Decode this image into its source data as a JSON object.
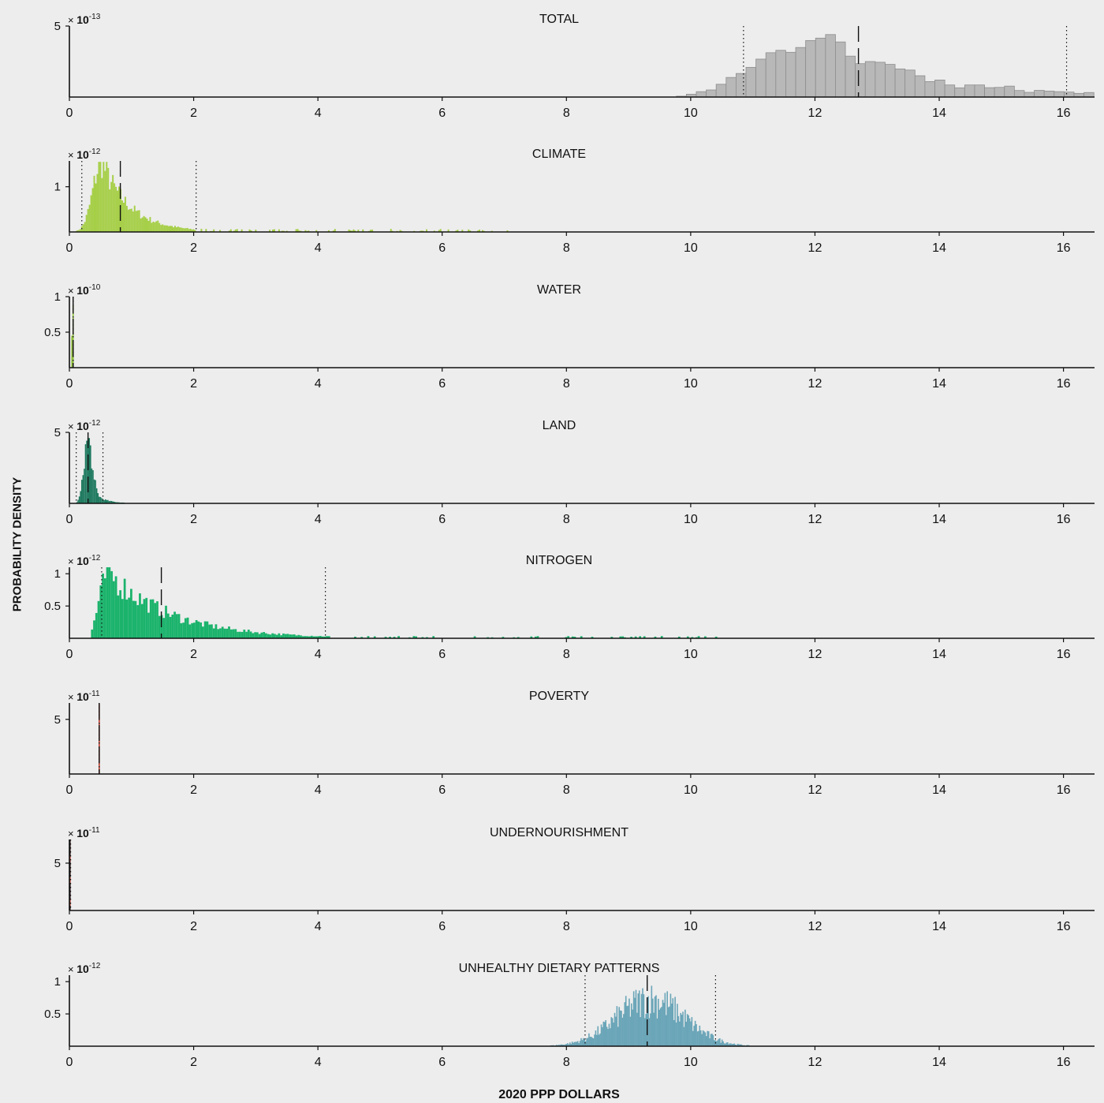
{
  "ylabel": "PROBABILITY DENSITY",
  "xlabel": "2020 PPP DOLLARS",
  "xticks": [
    0,
    2,
    4,
    6,
    8,
    10,
    12,
    14,
    16
  ],
  "xlim": [
    0,
    16.5
  ],
  "chart_data": [
    {
      "type": "bar",
      "title": "TOTAL",
      "color": "#b8b8b8",
      "scale_exp": "-13",
      "ylim": [
        0,
        5
      ],
      "yticks": [
        5
      ],
      "bin_width": 0.16,
      "mean": 12.7,
      "ci": [
        10.85,
        16.05
      ],
      "x": [
        9.85,
        10.01,
        10.17,
        10.33,
        10.49,
        10.65,
        10.81,
        10.97,
        11.13,
        11.29,
        11.45,
        11.61,
        11.77,
        11.93,
        12.09,
        12.25,
        12.41,
        12.57,
        12.73,
        12.89,
        13.05,
        13.21,
        13.37,
        13.53,
        13.69,
        13.85,
        14.01,
        14.17,
        14.33,
        14.49,
        14.65,
        14.81,
        14.97,
        15.13,
        15.29,
        15.45,
        15.61,
        15.77,
        15.93,
        16.09,
        16.25,
        16.41
      ],
      "values": [
        0.06,
        0.2,
        0.38,
        0.5,
        0.9,
        1.38,
        1.66,
        2.09,
        2.67,
        3.12,
        3.29,
        3.15,
        3.49,
        3.98,
        4.15,
        4.4,
        3.88,
        2.88,
        2.35,
        2.5,
        2.45,
        2.3,
        1.98,
        1.9,
        1.5,
        1.09,
        1.2,
        0.85,
        0.65,
        0.85,
        0.85,
        0.66,
        0.68,
        0.77,
        0.46,
        0.33,
        0.47,
        0.42,
        0.38,
        0.35,
        0.26,
        0.32
      ]
    },
    {
      "type": "bar",
      "title": "CLIMATE",
      "color": "#a6cf48",
      "scale_exp": "-12",
      "ylim": [
        0,
        1.57
      ],
      "yticks": [
        1
      ],
      "bin_width": 0.025,
      "mean": 0.82,
      "ci": [
        0.2,
        2.04
      ],
      "peak": {
        "x": 0.52,
        "y": 1.55
      }
    },
    {
      "type": "bar",
      "title": "WATER",
      "color": "#8fbf3a",
      "scale_exp": "-10",
      "ylim": [
        0,
        1
      ],
      "yticks": [
        1,
        0.5
      ],
      "bin_width": 0.02,
      "mean": 0.06,
      "ci": [
        0.06,
        0.06
      ],
      "x": [
        0.04,
        0.06
      ],
      "values": [
        0.45,
        0.88
      ]
    },
    {
      "type": "bar",
      "title": "LAND",
      "color": "#1f7a5f",
      "scale_exp": "-12",
      "ylim": [
        0,
        5
      ],
      "yticks": [
        5
      ],
      "bin_width": 0.02,
      "mean": 0.3,
      "ci": [
        0.11,
        0.54
      ],
      "peak": {
        "x": 0.3,
        "y": 4.6
      }
    },
    {
      "type": "bar",
      "title": "NITROGEN",
      "color": "#1bb36c",
      "scale_exp": "-12",
      "ylim": [
        0,
        1.1
      ],
      "yticks": [
        1,
        0.5
      ],
      "bin_width": 0.035,
      "mean": 1.48,
      "ci": [
        0.52,
        4.12
      ],
      "peak": {
        "x": 0.6,
        "y": 1.1
      }
    },
    {
      "type": "bar",
      "title": "POVERTY",
      "color": "#c03a2b",
      "scale_exp": "-11",
      "ylim": [
        0,
        6.5
      ],
      "yticks": [
        5
      ],
      "bin_width": 0.02,
      "mean": 0.48,
      "ci": [
        0.48,
        0.48
      ],
      "x": [
        0.48
      ],
      "values": [
        6.4
      ]
    },
    {
      "type": "bar",
      "title": "UNDERNOURISHMENT",
      "color": "#c03a2b",
      "scale_exp": "-11",
      "ylim": [
        0,
        7.5
      ],
      "yticks": [
        5
      ],
      "bin_width": 0.02,
      "mean": 0.01,
      "ci": [
        0.0,
        0.02
      ],
      "x": [
        0.01
      ],
      "values": [
        7.4
      ]
    },
    {
      "type": "bar",
      "title": "UNHEALTHY DIETARY PATTERNS",
      "color": "#6aa5b8",
      "scale_exp": "-12",
      "ylim": [
        0,
        1.1
      ],
      "yticks": [
        1,
        0.5
      ],
      "bin_width": 0.018,
      "mean": 9.3,
      "ci": [
        8.3,
        10.4
      ],
      "peak": {
        "x": 9.3,
        "y": 1.1
      }
    }
  ]
}
